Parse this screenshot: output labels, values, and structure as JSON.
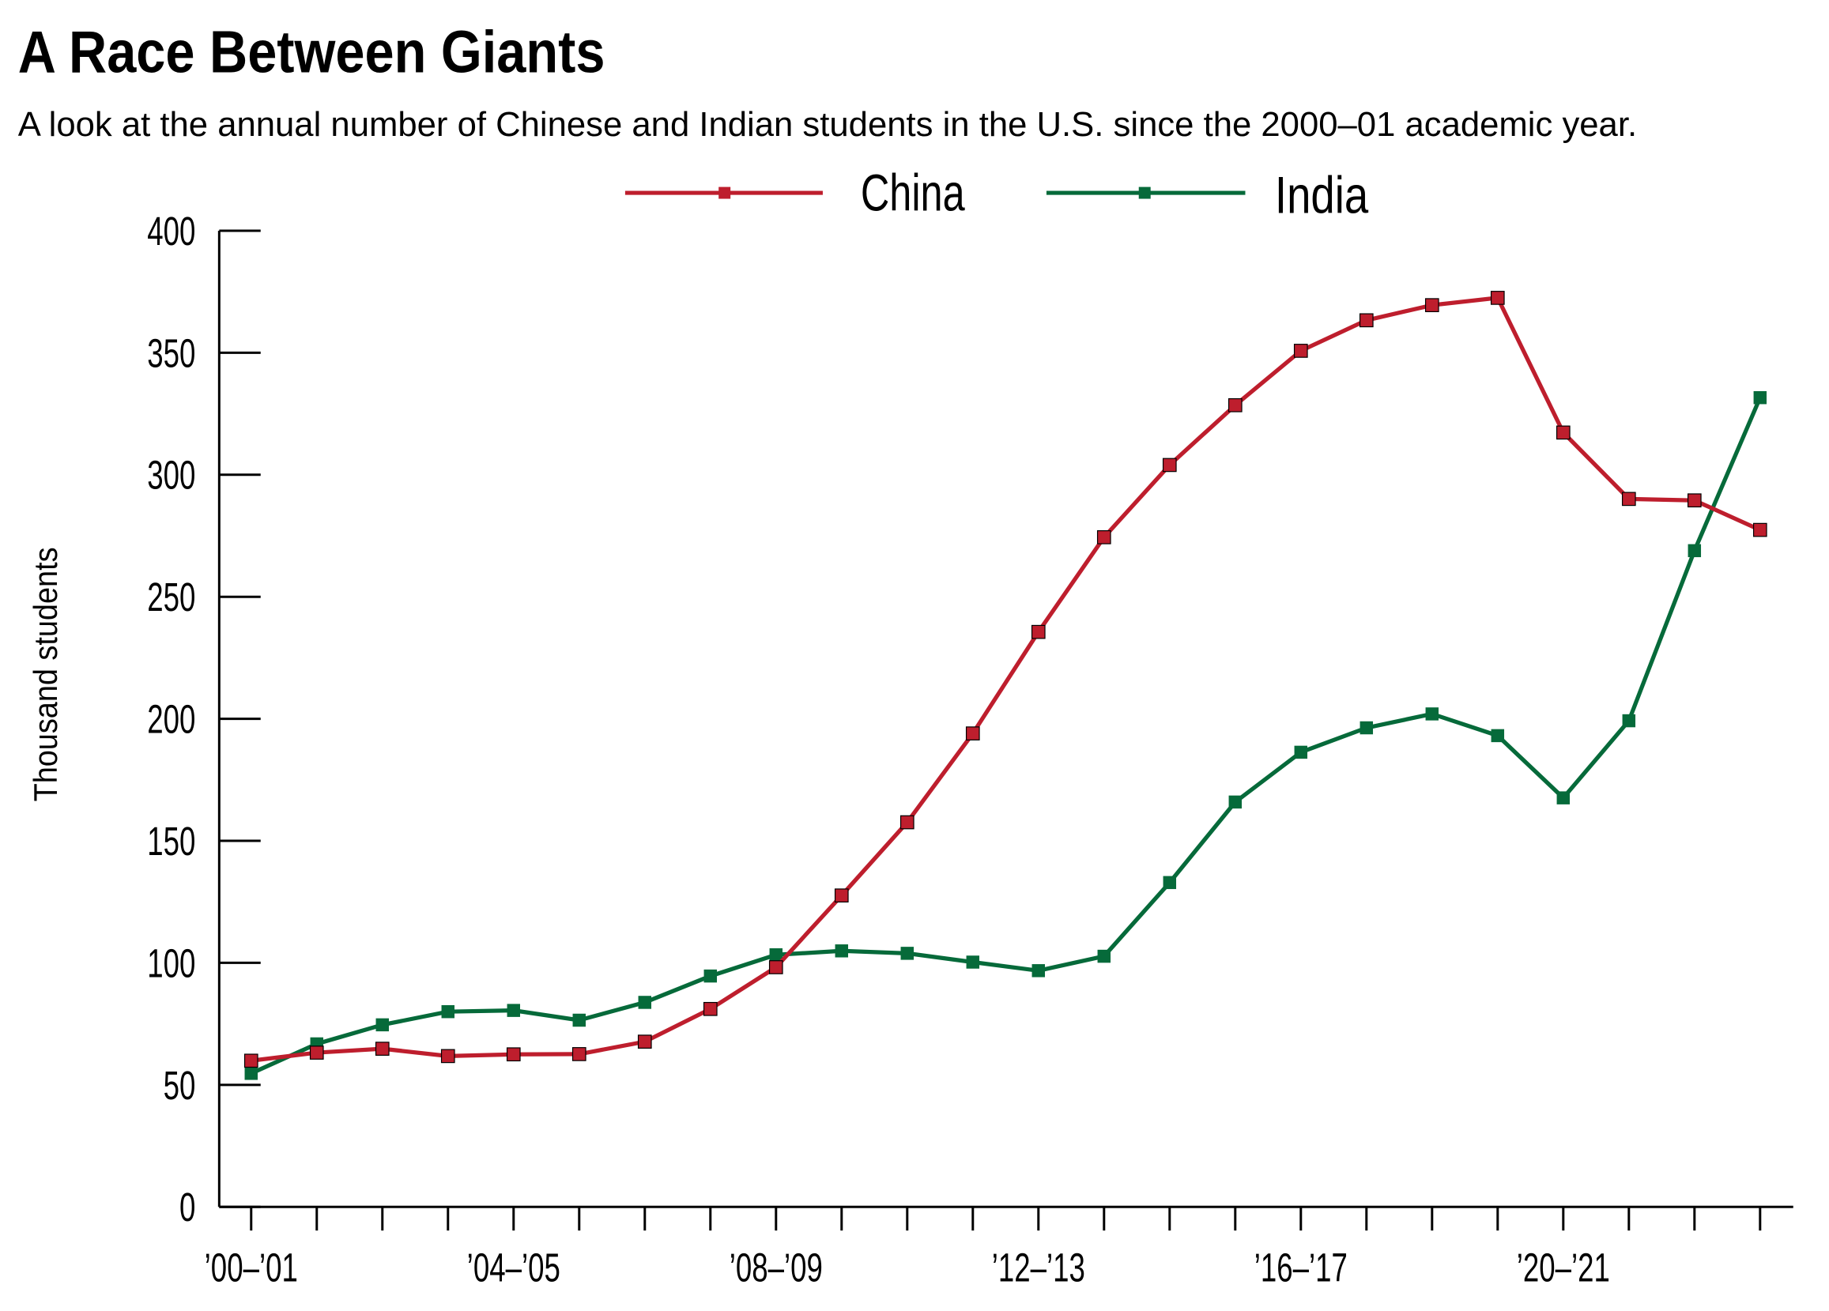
{
  "chart_data": {
    "type": "line",
    "title": "A Race Between Giants",
    "subtitle": "A look at the annual number of Chinese and Indian students in the U.S. since the 2000–01 academic year.",
    "xlabel": "",
    "ylabel": "Thousand students",
    "ylim": [
      0,
      400
    ],
    "yticks": [
      "0",
      "50",
      "100",
      "150",
      "200",
      "250",
      "300",
      "350",
      "400"
    ],
    "categories": [
      "2000–01",
      "2001–02",
      "2002–03",
      "2003–04",
      "2004–05",
      "2005–06",
      "2006–07",
      "2007–08",
      "2008–09",
      "2009–10",
      "2010–11",
      "2011–12",
      "2012–13",
      "2013–14",
      "2014–15",
      "2015–16",
      "2016–17",
      "2017–18",
      "2018–19",
      "2019–20",
      "2020–21",
      "2021–22",
      "2022–23",
      "2023–24"
    ],
    "xtick_labels": [
      {
        "index": 0,
        "label": "’00–’01"
      },
      {
        "index": 4,
        "label": "’04–’05"
      },
      {
        "index": 8,
        "label": "’08–’09"
      },
      {
        "index": 12,
        "label": "’12–’13"
      },
      {
        "index": 16,
        "label": "’16–’17"
      },
      {
        "index": 20,
        "label": "’20–’21"
      }
    ],
    "grid": false,
    "legend_position": "top-center",
    "series": [
      {
        "name": "China",
        "color": "#BE1E2D",
        "marker": "square",
        "values": [
          59.9,
          63.2,
          64.8,
          61.8,
          62.5,
          62.6,
          67.7,
          81.1,
          98.2,
          127.6,
          157.6,
          194.0,
          235.6,
          274.4,
          304.0,
          328.5,
          350.8,
          363.3,
          369.5,
          372.5,
          317.3,
          290.1,
          289.5,
          277.4
        ]
      },
      {
        "name": "India",
        "color": "#066A3A",
        "marker": "square",
        "values": [
          54.7,
          66.8,
          74.6,
          80.0,
          80.5,
          76.5,
          83.8,
          94.6,
          103.3,
          104.9,
          103.9,
          100.3,
          96.8,
          102.7,
          132.9,
          165.9,
          186.3,
          196.3,
          202.0,
          193.1,
          167.6,
          199.2,
          268.9,
          331.6
        ]
      }
    ]
  }
}
